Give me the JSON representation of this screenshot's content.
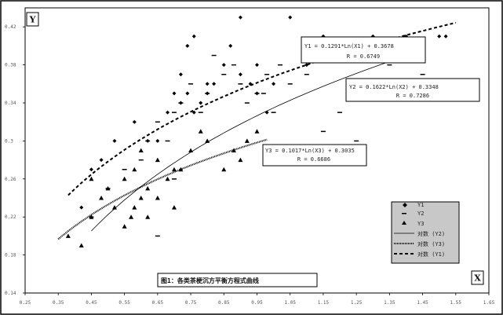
{
  "chart_data": {
    "type": "scatter",
    "title": "图1：各类茶梗沉方平衡方程式曲线",
    "xlabel": "X",
    "ylabel": "Y",
    "xlim": [
      0.25,
      1.65
    ],
    "ylim": [
      0.14,
      0.44
    ],
    "x_ticks": [
      "0.25",
      "0.35",
      "0.45",
      "0.55",
      "0.65",
      "0.75",
      "0.85",
      "0.95",
      "1.05",
      "1.15",
      "1.25",
      "1.35",
      "1.45",
      "1.55",
      "1.65"
    ],
    "y_ticks": [
      "0.14",
      "0.18",
      "0.22",
      "0.26",
      "0.3",
      "0.34",
      "0.38",
      "0.42"
    ],
    "y_tick_values": [
      0.14,
      0.18,
      0.22,
      0.26,
      0.3,
      0.34,
      0.38,
      0.42
    ],
    "series": [
      {
        "name": "Y1",
        "marker": "diamond",
        "x": [
          0.42,
          0.45,
          0.48,
          0.52,
          0.58,
          0.62,
          0.65,
          0.68,
          0.7,
          0.72,
          0.72,
          0.74,
          0.76,
          0.78,
          0.8,
          0.82,
          0.85,
          0.87,
          0.9,
          0.93,
          0.95,
          0.98,
          1.0,
          1.05,
          1.1,
          1.15,
          1.2,
          1.25,
          1.3,
          1.35,
          1.4,
          1.45,
          1.5,
          1.52,
          0.74,
          0.76,
          0.8,
          0.9,
          0.95
        ],
        "y": [
          0.23,
          0.27,
          0.28,
          0.3,
          0.32,
          0.3,
          0.3,
          0.33,
          0.35,
          0.37,
          0.34,
          0.35,
          0.33,
          0.34,
          0.35,
          0.36,
          0.38,
          0.4,
          0.37,
          0.36,
          0.38,
          0.33,
          0.36,
          0.43,
          0.38,
          0.41,
          0.4,
          0.39,
          0.41,
          0.39,
          0.41,
          0.4,
          0.41,
          0.41,
          0.4,
          0.41,
          0.36,
          0.43,
          0.35
        ]
      },
      {
        "name": "Y2",
        "marker": "dash",
        "x": [
          0.45,
          0.5,
          0.55,
          0.6,
          0.62,
          0.65,
          0.68,
          0.7,
          0.72,
          0.75,
          0.78,
          0.8,
          0.85,
          0.88,
          0.9,
          0.92,
          0.95,
          0.98,
          1.0,
          1.02,
          1.05,
          1.1,
          1.15,
          1.2,
          1.25,
          1.3,
          1.35,
          1.45,
          0.65,
          0.7,
          0.82,
          0.97
        ],
        "y": [
          0.22,
          0.25,
          0.27,
          0.28,
          0.3,
          0.32,
          0.3,
          0.33,
          0.34,
          0.36,
          0.33,
          0.35,
          0.37,
          0.38,
          0.36,
          0.34,
          0.35,
          0.37,
          0.33,
          0.38,
          0.36,
          0.37,
          0.31,
          0.33,
          0.3,
          0.35,
          0.38,
          0.37,
          0.2,
          0.26,
          0.39,
          0.35
        ]
      },
      {
        "name": "Y3",
        "marker": "triangle",
        "x": [
          0.38,
          0.42,
          0.45,
          0.48,
          0.5,
          0.52,
          0.55,
          0.57,
          0.58,
          0.6,
          0.6,
          0.62,
          0.65,
          0.68,
          0.7,
          0.72,
          0.75,
          0.78,
          0.8,
          0.85,
          0.88,
          0.9,
          0.92,
          0.95,
          0.55,
          0.58,
          0.62,
          0.65,
          0.7,
          0.45
        ],
        "y": [
          0.2,
          0.19,
          0.22,
          0.24,
          0.25,
          0.23,
          0.26,
          0.22,
          0.27,
          0.24,
          0.29,
          0.25,
          0.28,
          0.26,
          0.23,
          0.27,
          0.29,
          0.31,
          0.3,
          0.27,
          0.29,
          0.28,
          0.3,
          0.31,
          0.21,
          0.23,
          0.22,
          0.24,
          0.27,
          0.26
        ]
      }
    ],
    "trendlines": [
      {
        "name": "对数 (Y2)",
        "a": 0.1622,
        "b": 0.3348,
        "x_range": [
          0.45,
          1.45
        ],
        "style": "solid"
      },
      {
        "name": "对数 (Y3)",
        "a": 0.1017,
        "b": 0.3035,
        "x_range": [
          0.35,
          0.98
        ],
        "style": "dotted"
      },
      {
        "name": "对数 (Y1)",
        "a": 0.1291,
        "b": 0.3678,
        "x_range": [
          0.38,
          1.55
        ],
        "style": "dashed"
      }
    ],
    "annotations": [
      {
        "equation": "Y1 = 0.1291*Ln(X1) + 0.3678",
        "r": "R = 0.6749"
      },
      {
        "equation": "Y2 = 0.1622*Ln(X2) + 0.3348",
        "r": "R = 0.7286"
      },
      {
        "equation": "Y3 = 0.1017*Ln(X3) + 0.3035",
        "r": "R = 0.6686"
      }
    ],
    "legend": {
      "placement": "right",
      "items": [
        "Y1",
        "Y2",
        "Y3",
        "对数 (Y2)",
        "对数 (Y3)",
        "对数 (Y1)"
      ]
    },
    "grid": false
  }
}
